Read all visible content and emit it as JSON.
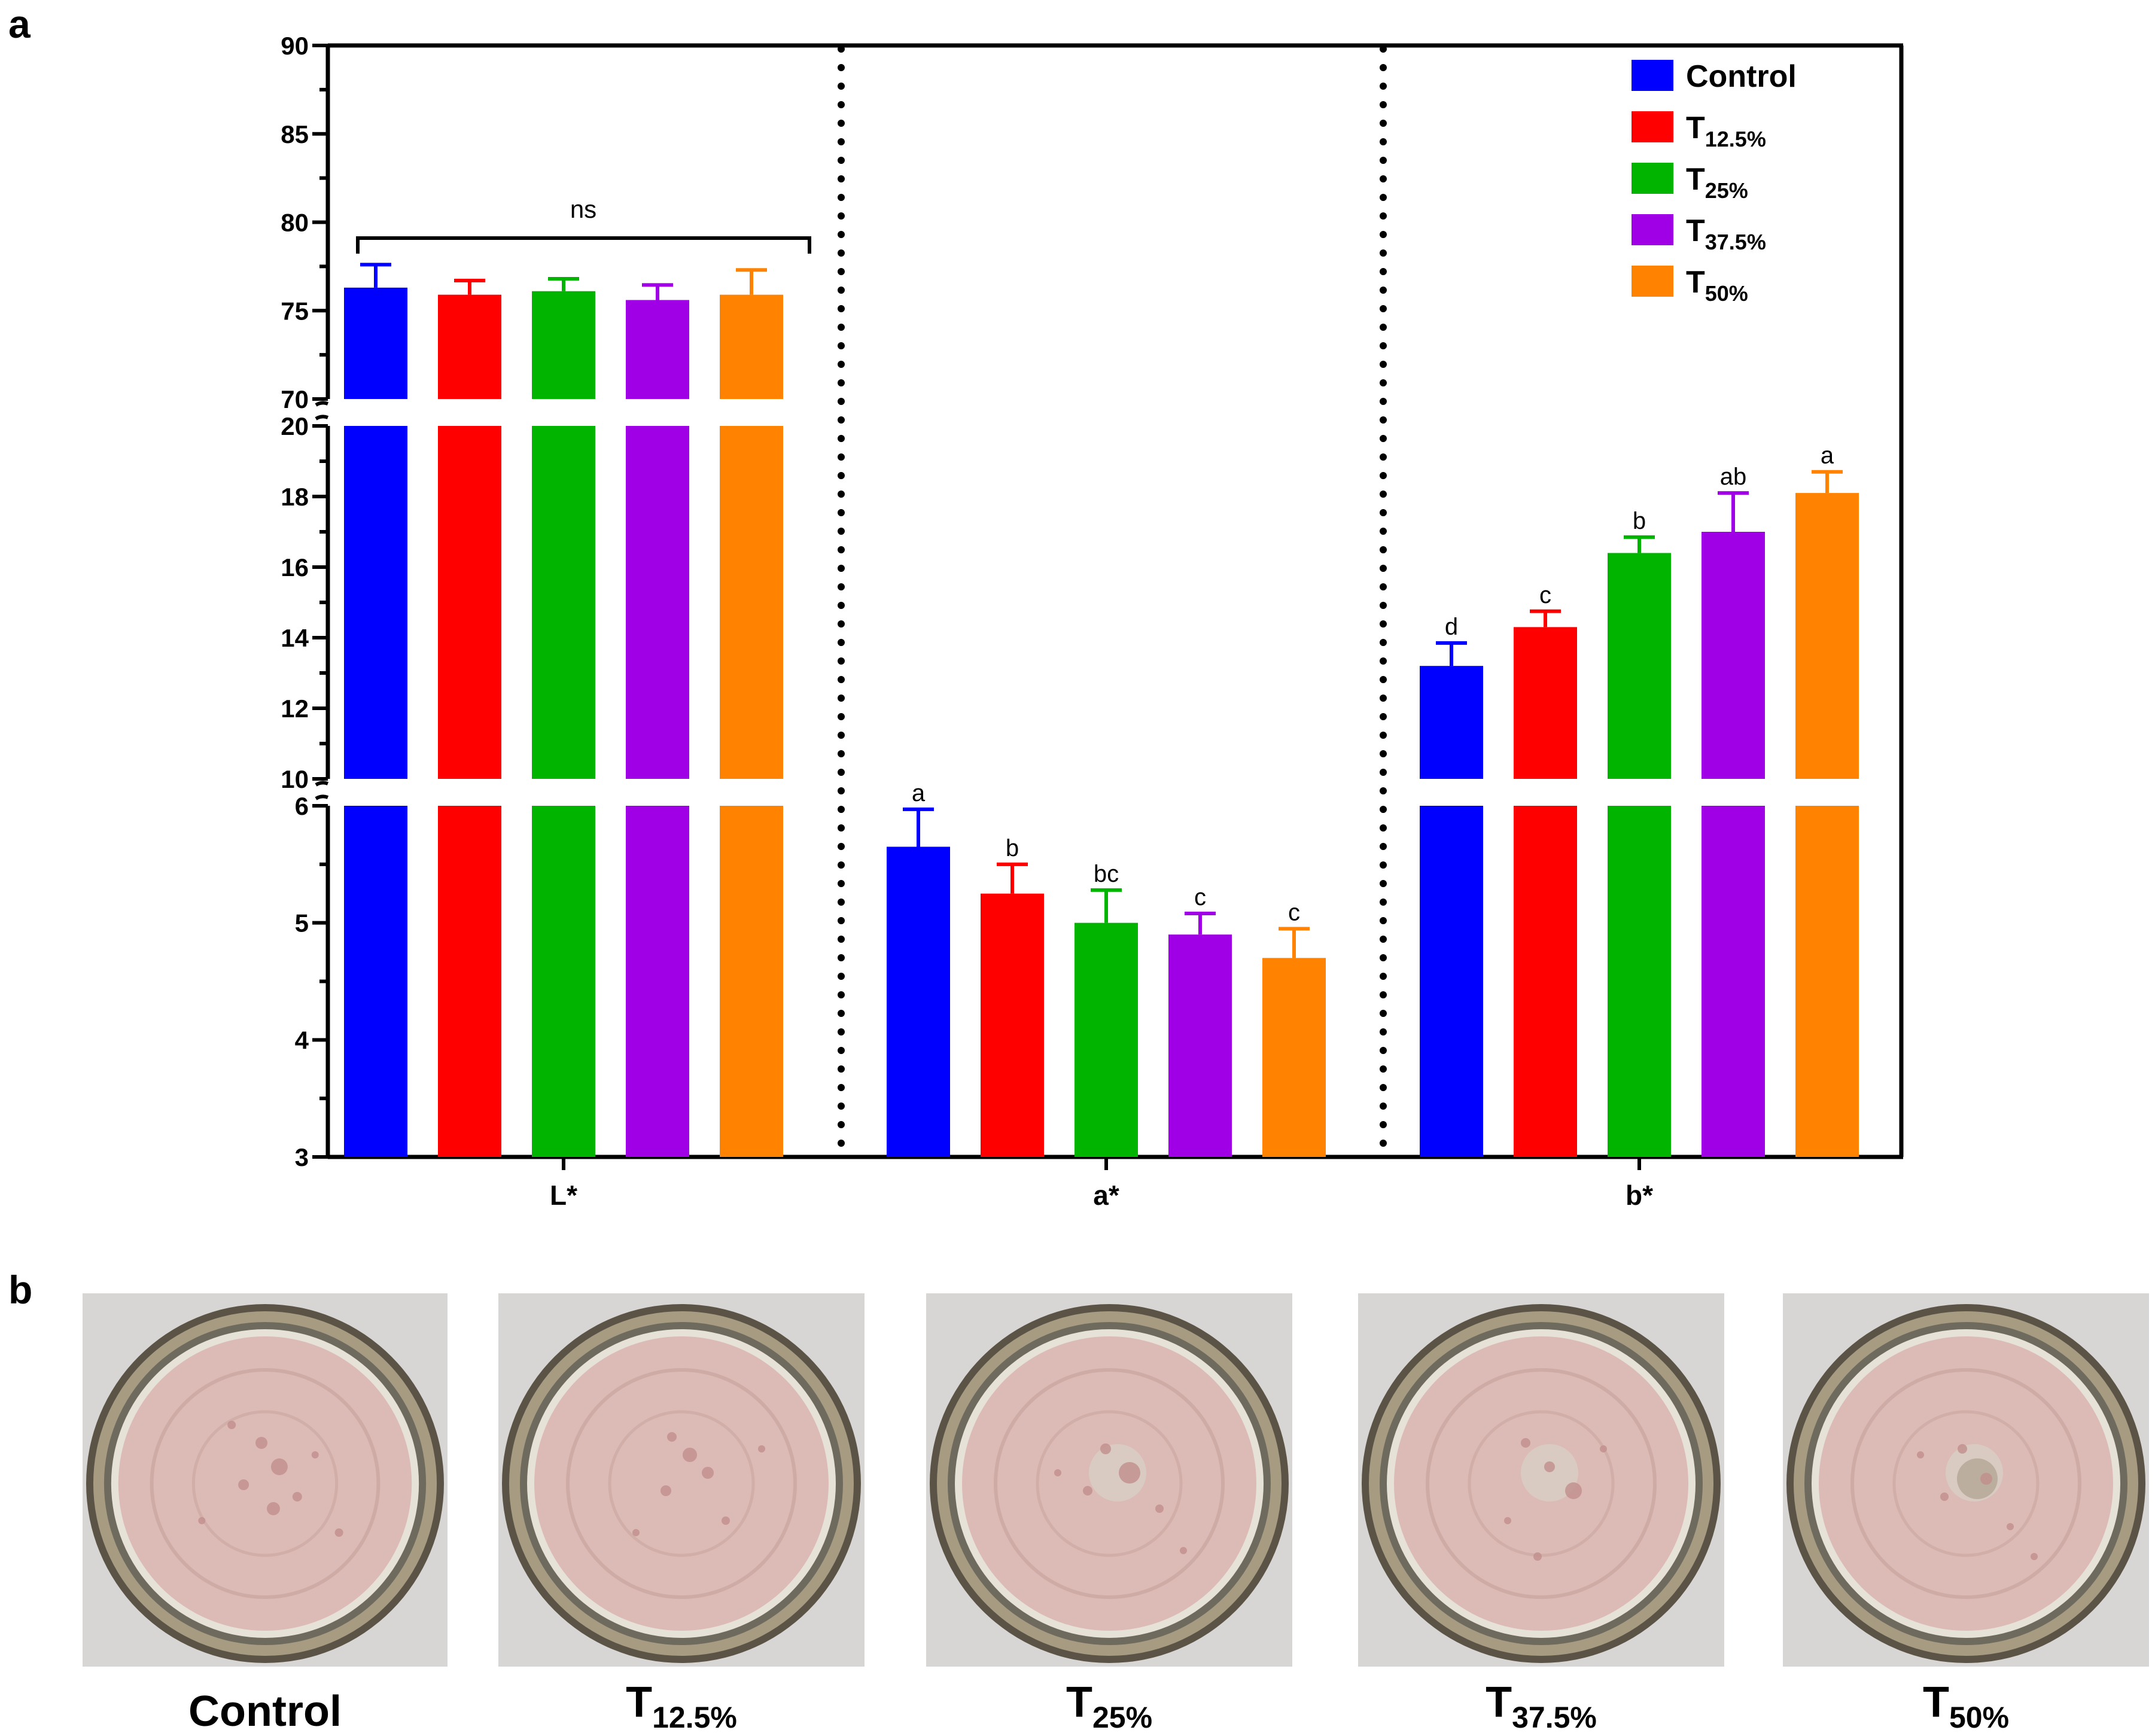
{
  "panels": {
    "a": "a",
    "b": "b"
  },
  "chart_data": {
    "type": "bar",
    "categories": [
      "L*",
      "a*",
      "b*"
    ],
    "series": [
      {
        "name_main": "Control",
        "name_sub": "",
        "color": "#0000ff",
        "values": [
          76.3,
          5.65,
          13.2
        ],
        "errors": [
          1.3,
          0.32,
          0.65
        ],
        "letters": [
          "",
          "a",
          "d"
        ]
      },
      {
        "name_main": "T",
        "name_sub": "12.5%",
        "color": "#ff0000",
        "values": [
          75.9,
          5.25,
          14.3
        ],
        "errors": [
          0.8,
          0.25,
          0.45
        ],
        "letters": [
          "",
          "b",
          "c"
        ]
      },
      {
        "name_main": "T",
        "name_sub": "25%",
        "color": "#00b400",
        "values": [
          76.1,
          5.0,
          16.4
        ],
        "errors": [
          0.7,
          0.28,
          0.45
        ],
        "letters": [
          "",
          "bc",
          "b"
        ]
      },
      {
        "name_main": "T",
        "name_sub": "37.5%",
        "color": "#a000e6",
        "values": [
          75.6,
          4.9,
          17.0
        ],
        "errors": [
          0.85,
          0.18,
          1.1
        ],
        "letters": [
          "",
          "c",
          "ab"
        ]
      },
      {
        "name_main": "T",
        "name_sub": "50%",
        "color": "#ff8200",
        "values": [
          75.9,
          4.7,
          18.1
        ],
        "errors": [
          1.4,
          0.25,
          0.6
        ],
        "letters": [
          "",
          "c",
          "a"
        ]
      }
    ],
    "y_segments": [
      {
        "range": [
          3,
          6
        ],
        "ticks": [
          "3",
          "4",
          "5",
          "6"
        ]
      },
      {
        "range": [
          10,
          20
        ],
        "ticks": [
          "10",
          "12",
          "14",
          "16",
          "18",
          "20"
        ]
      },
      {
        "range": [
          70,
          90
        ],
        "ticks": [
          "70",
          "75",
          "80",
          "85",
          "90"
        ]
      }
    ],
    "annotation_ns": "ns",
    "legend_position": "top-right",
    "grid": false
  },
  "photos": [
    {
      "caption_main": "Control",
      "caption_sub": ""
    },
    {
      "caption_main": "T",
      "caption_sub": "12.5%"
    },
    {
      "caption_main": "T",
      "caption_sub": "25%"
    },
    {
      "caption_main": "T",
      "caption_sub": "37.5%"
    },
    {
      "caption_main": "T",
      "caption_sub": "50%"
    }
  ]
}
